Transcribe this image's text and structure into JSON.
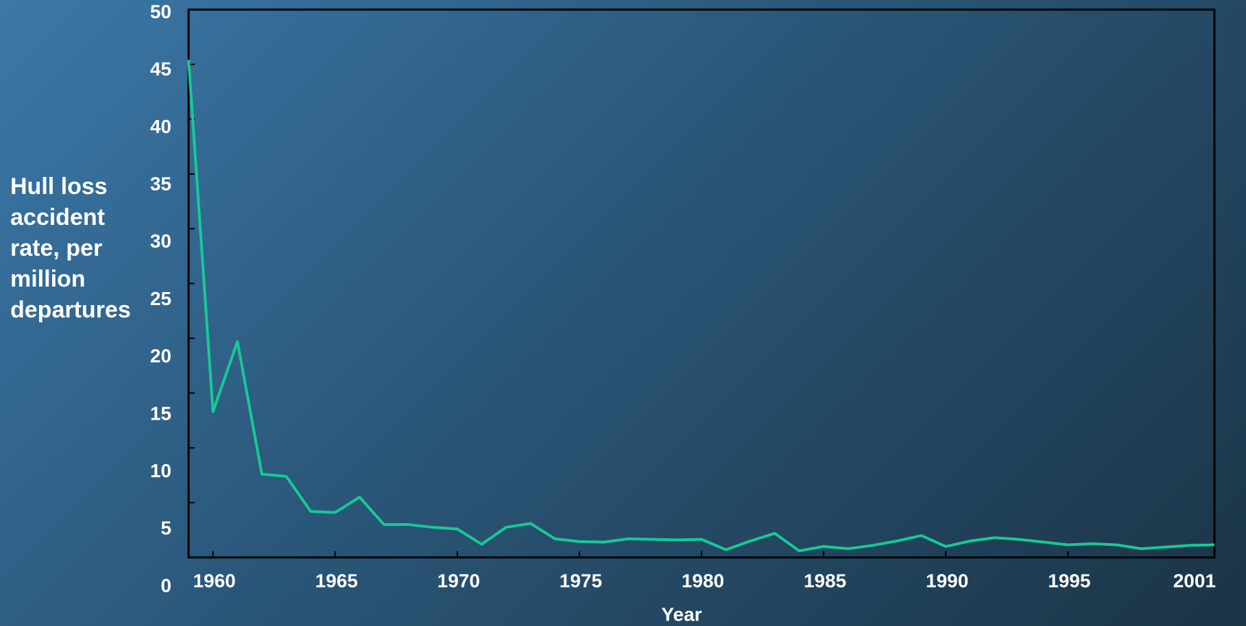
{
  "chart_data": {
    "type": "line",
    "y_label": "Hull loss accident rate, per million departures",
    "x_label": "Year",
    "x": [
      1959,
      1960,
      1961,
      1962,
      1963,
      1964,
      1965,
      1966,
      1967,
      1968,
      1969,
      1970,
      1971,
      1972,
      1973,
      1974,
      1975,
      1976,
      1977,
      1978,
      1979,
      1980,
      1981,
      1982,
      1983,
      1984,
      1985,
      1986,
      1987,
      1988,
      1989,
      1990,
      1991,
      1992,
      1993,
      1994,
      1995,
      1996,
      1997,
      1998,
      1999,
      2000,
      2001
    ],
    "series": [
      {
        "color": "#17c996",
        "values": [
          45.4,
          13.3,
          19.7,
          7.6,
          7.4,
          4.2,
          4.1,
          5.5,
          3.0,
          3.0,
          2.75,
          2.6,
          1.2,
          2.75,
          3.1,
          1.7,
          1.45,
          1.4,
          1.7,
          1.65,
          1.6,
          1.65,
          0.7,
          1.5,
          2.2,
          0.6,
          1.0,
          0.8,
          1.1,
          1.5,
          2.0,
          1.0,
          1.5,
          1.8,
          1.65,
          1.4,
          1.15,
          1.25,
          1.15,
          0.8,
          0.95,
          1.1,
          1.15
        ]
      }
    ],
    "xlim": [
      1959,
      2001
    ],
    "xticks": [
      1960,
      1965,
      1970,
      1975,
      1980,
      1985,
      1990,
      1995,
      2001
    ],
    "ylim": [
      0,
      50
    ],
    "yticks": [
      0,
      5,
      10,
      15,
      20,
      25,
      30,
      35,
      40,
      45,
      50
    ]
  }
}
